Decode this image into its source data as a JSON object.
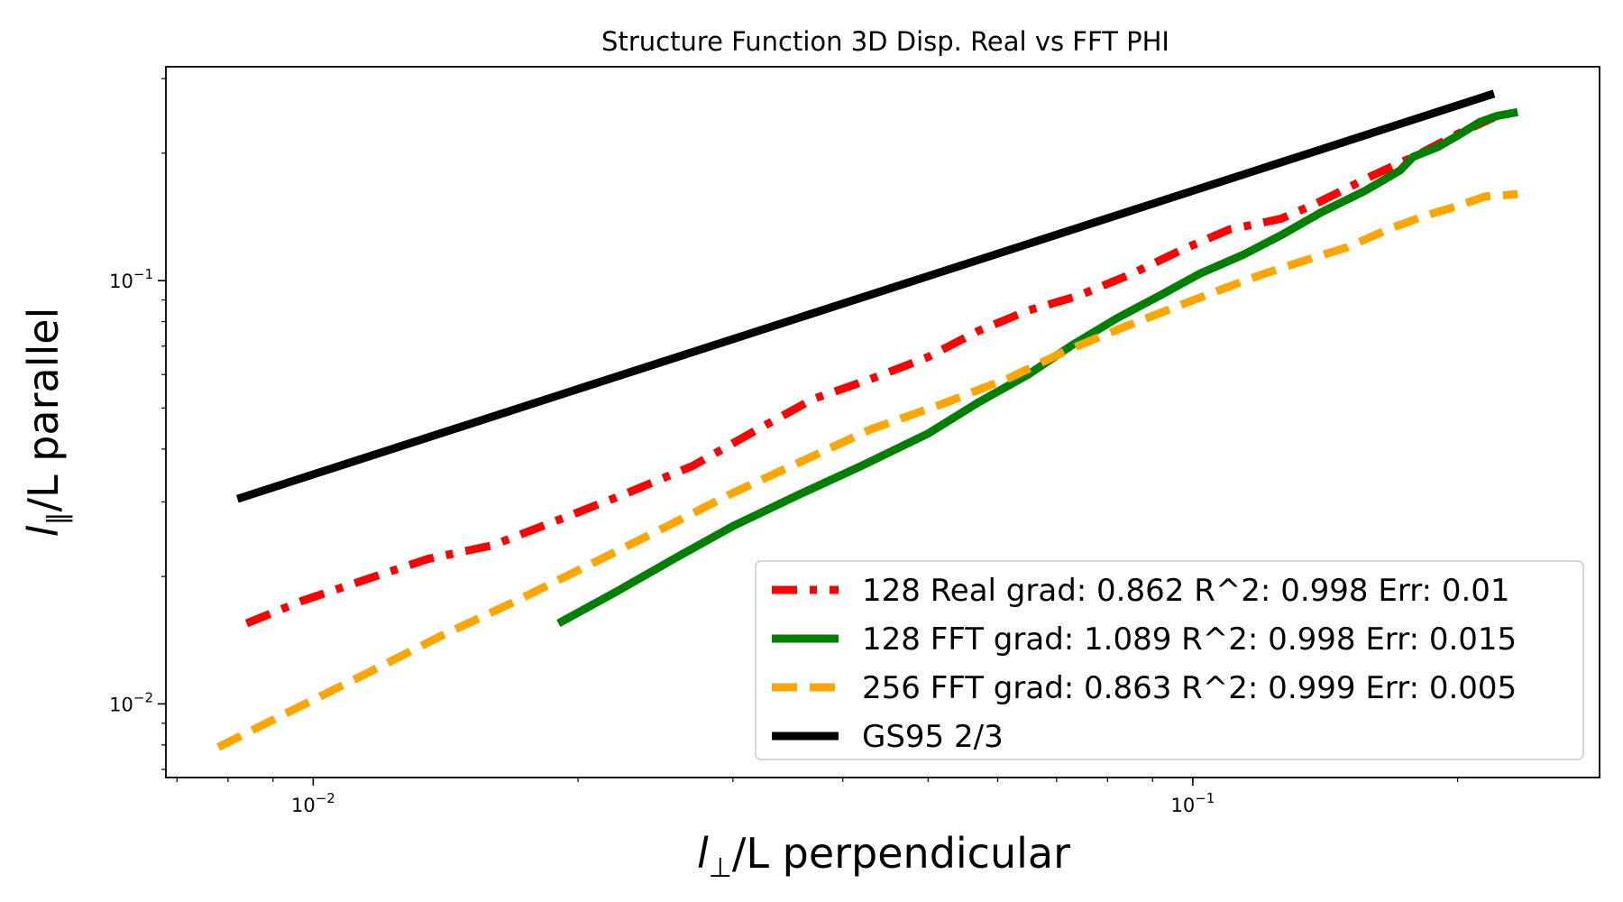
{
  "chart_data": {
    "type": "line",
    "title": "Structure Function 3D Disp. Real vs FFT PHI",
    "xlabel_sym": "l",
    "xlabel_sub": "⊥",
    "xlabel_rest": "/L perpendicular",
    "ylabel_sym": "l",
    "ylabel_sub": "∥",
    "ylabel_rest": "/L parallel",
    "xscale": "log",
    "yscale": "log",
    "xlim": [
      0.0068,
      0.29
    ],
    "ylim": [
      0.0067,
      0.32
    ],
    "grid": false,
    "legend_position": "lower right",
    "x_major_ticks": [
      {
        "value": 0.01,
        "base": "10",
        "exp": "−2"
      },
      {
        "value": 0.1,
        "base": "10",
        "exp": "−1"
      }
    ],
    "y_major_ticks": [
      {
        "value": 0.01,
        "base": "10",
        "exp": "−2"
      },
      {
        "value": 0.1,
        "base": "10",
        "exp": "−1"
      }
    ],
    "series": [
      {
        "name": "128 Real grad: 0.862 R^2: 0.998  Err: 0.01",
        "color": "#ff0000",
        "style": "dashdot",
        "x": [
          0.0084,
          0.0097,
          0.0115,
          0.0135,
          0.016,
          0.019,
          0.0225,
          0.027,
          0.032,
          0.037,
          0.043,
          0.05,
          0.057,
          0.065,
          0.074,
          0.085,
          0.097,
          0.11,
          0.126,
          0.138,
          0.16,
          0.18,
          0.2,
          0.22
        ],
        "y": [
          0.0155,
          0.0175,
          0.0197,
          0.022,
          0.0237,
          0.0272,
          0.0312,
          0.0365,
          0.0445,
          0.0525,
          0.0585,
          0.066,
          0.076,
          0.085,
          0.092,
          0.1035,
          0.118,
          0.132,
          0.14,
          0.152,
          0.177,
          0.198,
          0.222,
          0.243
        ]
      },
      {
        "name": "128 FFT grad: 1.089 R^2: 0.998  Err: 0.015",
        "color": "#008000",
        "style": "solid",
        "x": [
          0.019,
          0.022,
          0.026,
          0.03,
          0.036,
          0.042,
          0.05,
          0.057,
          0.065,
          0.073,
          0.082,
          0.092,
          0.102,
          0.114,
          0.126,
          0.14,
          0.157,
          0.172,
          0.178,
          0.19,
          0.2,
          0.212,
          0.222,
          0.234
        ],
        "y": [
          0.0155,
          0.0183,
          0.0223,
          0.0263,
          0.0315,
          0.0365,
          0.0435,
          0.0515,
          0.06,
          0.0705,
          0.0815,
          0.0925,
          0.104,
          0.115,
          0.128,
          0.145,
          0.163,
          0.182,
          0.196,
          0.207,
          0.22,
          0.237,
          0.245,
          0.25
        ]
      },
      {
        "name": "256 FFT grad: 0.863 R^2: 0.999  Err: 0.005",
        "color": "#ffa500",
        "style": "dashed",
        "x": [
          0.0078,
          0.0095,
          0.0115,
          0.014,
          0.017,
          0.0205,
          0.025,
          0.03,
          0.036,
          0.043,
          0.052,
          0.062,
          0.072,
          0.082,
          0.095,
          0.108,
          0.12,
          0.134,
          0.15,
          0.168,
          0.185,
          0.2,
          0.215,
          0.234
        ],
        "y": [
          0.0079,
          0.0097,
          0.0118,
          0.0145,
          0.0175,
          0.0212,
          0.026,
          0.0315,
          0.0375,
          0.0445,
          0.0512,
          0.059,
          0.0685,
          0.0765,
          0.0862,
          0.0955,
          0.1035,
          0.1115,
          0.12,
          0.133,
          0.143,
          0.15,
          0.158,
          0.16
        ]
      },
      {
        "name": "GS95 2/3",
        "color": "#000000",
        "style": "solid",
        "x": [
          0.0082,
          0.22
        ],
        "y": [
          0.0305,
          0.2765
        ]
      }
    ]
  }
}
